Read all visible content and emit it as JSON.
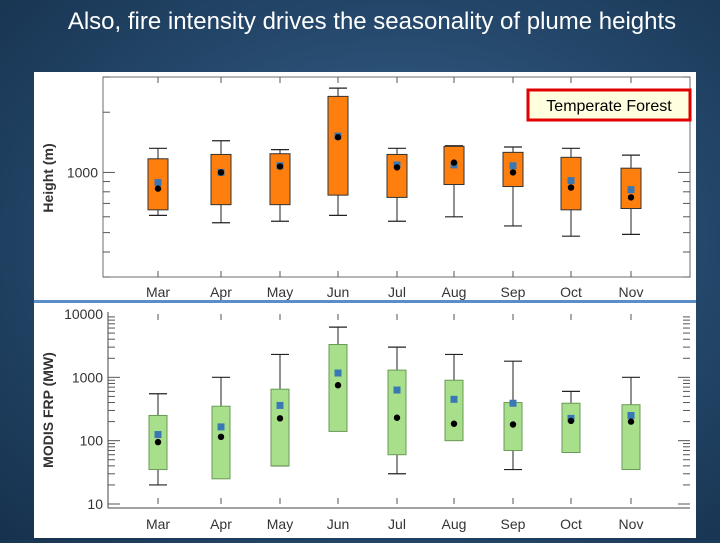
{
  "slide": {
    "title": "Also, fire intensity drives the seasonality of plume heights"
  },
  "colors": {
    "top_box": "#ff7f0e",
    "bottom_box": "#a8df8a",
    "mean_marker": "#3a78b5",
    "median_marker": "#000000",
    "divider": "#5b8ec8",
    "callout_border": "#e00000",
    "callout_fill": "#ffffe0"
  },
  "chart_data": [
    {
      "type": "box",
      "panel": "top",
      "title": "Temperate Forest",
      "ylabel": "Height (m)",
      "xlabel": "",
      "yscale": "log",
      "ylim": [
        300,
        3000
      ],
      "ytick_labels": [
        "1000"
      ],
      "categories": [
        "Mar",
        "Apr",
        "May",
        "Jun",
        "Jul",
        "Aug",
        "Sep",
        "Oct",
        "Nov"
      ],
      "whisker_low": [
        610,
        560,
        570,
        610,
        570,
        600,
        540,
        480,
        490
      ],
      "q1": [
        650,
        690,
        690,
        770,
        750,
        870,
        850,
        650,
        660
      ],
      "median": [
        830,
        1000,
        1070,
        1500,
        1060,
        1120,
        1000,
        840,
        750
      ],
      "mean": [
        890,
        1000,
        1080,
        1520,
        1090,
        1090,
        1080,
        910,
        820
      ],
      "q3": [
        1170,
        1230,
        1240,
        2400,
        1230,
        1350,
        1260,
        1190,
        1050
      ],
      "whisker_high": [
        1320,
        1440,
        1300,
        2640,
        1320,
        1360,
        1340,
        1320,
        1220
      ]
    },
    {
      "type": "box",
      "panel": "bottom",
      "title": "",
      "ylabel": "MODIS FRP (MW)",
      "xlabel": "",
      "yscale": "log",
      "ylim": [
        10,
        10000
      ],
      "ytick_labels": [
        "10",
        "100",
        "1000",
        "10000"
      ],
      "categories": [
        "Mar",
        "Apr",
        "May",
        "Jun",
        "Jul",
        "Aug",
        "Sep",
        "Oct",
        "Nov"
      ],
      "whisker_low": [
        20,
        null,
        40,
        null,
        30,
        null,
        35,
        null,
        null
      ],
      "q1": [
        35,
        25,
        40,
        140,
        60,
        100,
        70,
        65,
        35
      ],
      "median": [
        95,
        115,
        225,
        750,
        230,
        185,
        180,
        205,
        200
      ],
      "mean": [
        125,
        165,
        360,
        1170,
        630,
        450,
        390,
        225,
        250
      ],
      "q3": [
        250,
        350,
        650,
        3300,
        1300,
        900,
        400,
        390,
        370
      ],
      "whisker_high": [
        550,
        1000,
        2300,
        6200,
        3000,
        2300,
        1800,
        600,
        1000
      ]
    }
  ]
}
